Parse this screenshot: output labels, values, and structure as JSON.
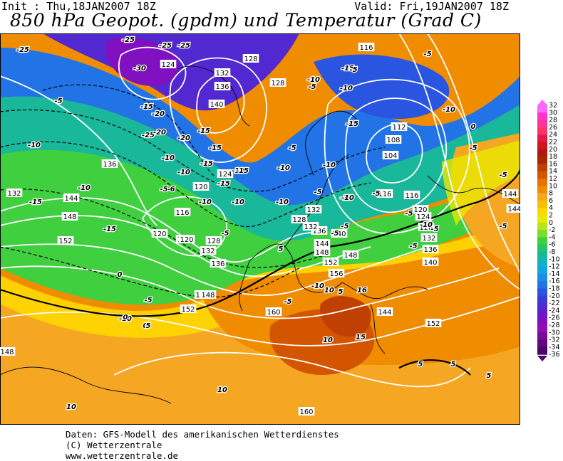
{
  "header": {
    "init": "Init : Thu,18JAN2007 18Z",
    "valid": "Valid: Fri,19JAN2007 18Z",
    "title": "850 hPa Geopot. (gpdm) und Temperatur (Grad C)"
  },
  "footer": {
    "line1": "Daten: GFS-Modell des amerikanischen Wetterdienstes",
    "line2": "(C) Wetterzentrale",
    "line3": "www.wetterzentrale.de"
  },
  "legend": {
    "labels": [
      "32",
      "30",
      "28",
      "26",
      "24",
      "22",
      "20",
      "18",
      "16",
      "14",
      "12",
      "10",
      "8",
      "6",
      "4",
      "2",
      "0",
      "-2",
      "-4",
      "-6",
      "-8",
      "-10",
      "-12",
      "-14",
      "-16",
      "-18",
      "-20",
      "-22",
      "-24",
      "-26",
      "-28",
      "-30",
      "-32",
      "-34",
      "-36"
    ],
    "colors": [
      "#ff66ff",
      "#ff33cc",
      "#ff3399",
      "#ff3366",
      "#e6194b",
      "#cc1a1a",
      "#b81414",
      "#a52a00",
      "#bf4000",
      "#d45500",
      "#e67300",
      "#f08c00",
      "#f5a623",
      "#f7c000",
      "#ffd700",
      "#e8e800",
      "#b5e61d",
      "#7fdd2a",
      "#3fcf3f",
      "#22c46a",
      "#19b89a",
      "#14b0c8",
      "#12a5e0",
      "#1a8fe8",
      "#2173e6",
      "#2a55e0",
      "#3a3ad8",
      "#5228d0",
      "#6a18c8",
      "#8010c0",
      "#9010b0",
      "#7a0a98",
      "#600880",
      "#4a066a"
    ]
  },
  "map_labels": {
    "geopotential": [
      "128",
      "124",
      "132",
      "136",
      "140",
      "128",
      "116",
      "112",
      "108",
      "104",
      "116",
      "116",
      "120",
      "124",
      "128",
      "132",
      "136",
      "140",
      "144",
      "148",
      "132",
      "136",
      "140",
      "144",
      "148",
      "152",
      "152",
      "156",
      "160",
      "160",
      "148",
      "144",
      "144",
      "152",
      "132",
      "144",
      "120",
      "116",
      "120",
      "124",
      "128",
      "132",
      "136",
      "140",
      "148",
      "148",
      "152",
      "136",
      "124",
      "120",
      "128",
      "132"
    ],
    "temperature": [
      "-25",
      "-25",
      "-25",
      "-25",
      "-30",
      "-20",
      "-15",
      "-25",
      "-20",
      "-15",
      "-20",
      "-15",
      "-10",
      "-15",
      "-10",
      "-15",
      "-10",
      "-5",
      "-10",
      "-5",
      "-10",
      "-5",
      "-5",
      "-15",
      "-10",
      "-15",
      "-10",
      "-5",
      "-10",
      "-10",
      "-5",
      "-5",
      "-5",
      "0",
      "0",
      "-5",
      "-5",
      "-5",
      "-10",
      "-10",
      "-5",
      "-15",
      "-15",
      "-10",
      "0",
      "5",
      "5",
      "10",
      "10",
      "15",
      "16",
      "10",
      "5",
      "5",
      "5",
      "10",
      "5",
      "-6",
      "-10",
      "-10",
      "-5",
      "-15",
      "-10",
      "-5",
      "0",
      "-5",
      "-5",
      "-5",
      "-10",
      "-10",
      "-10",
      "-5",
      "-5"
    ]
  }
}
